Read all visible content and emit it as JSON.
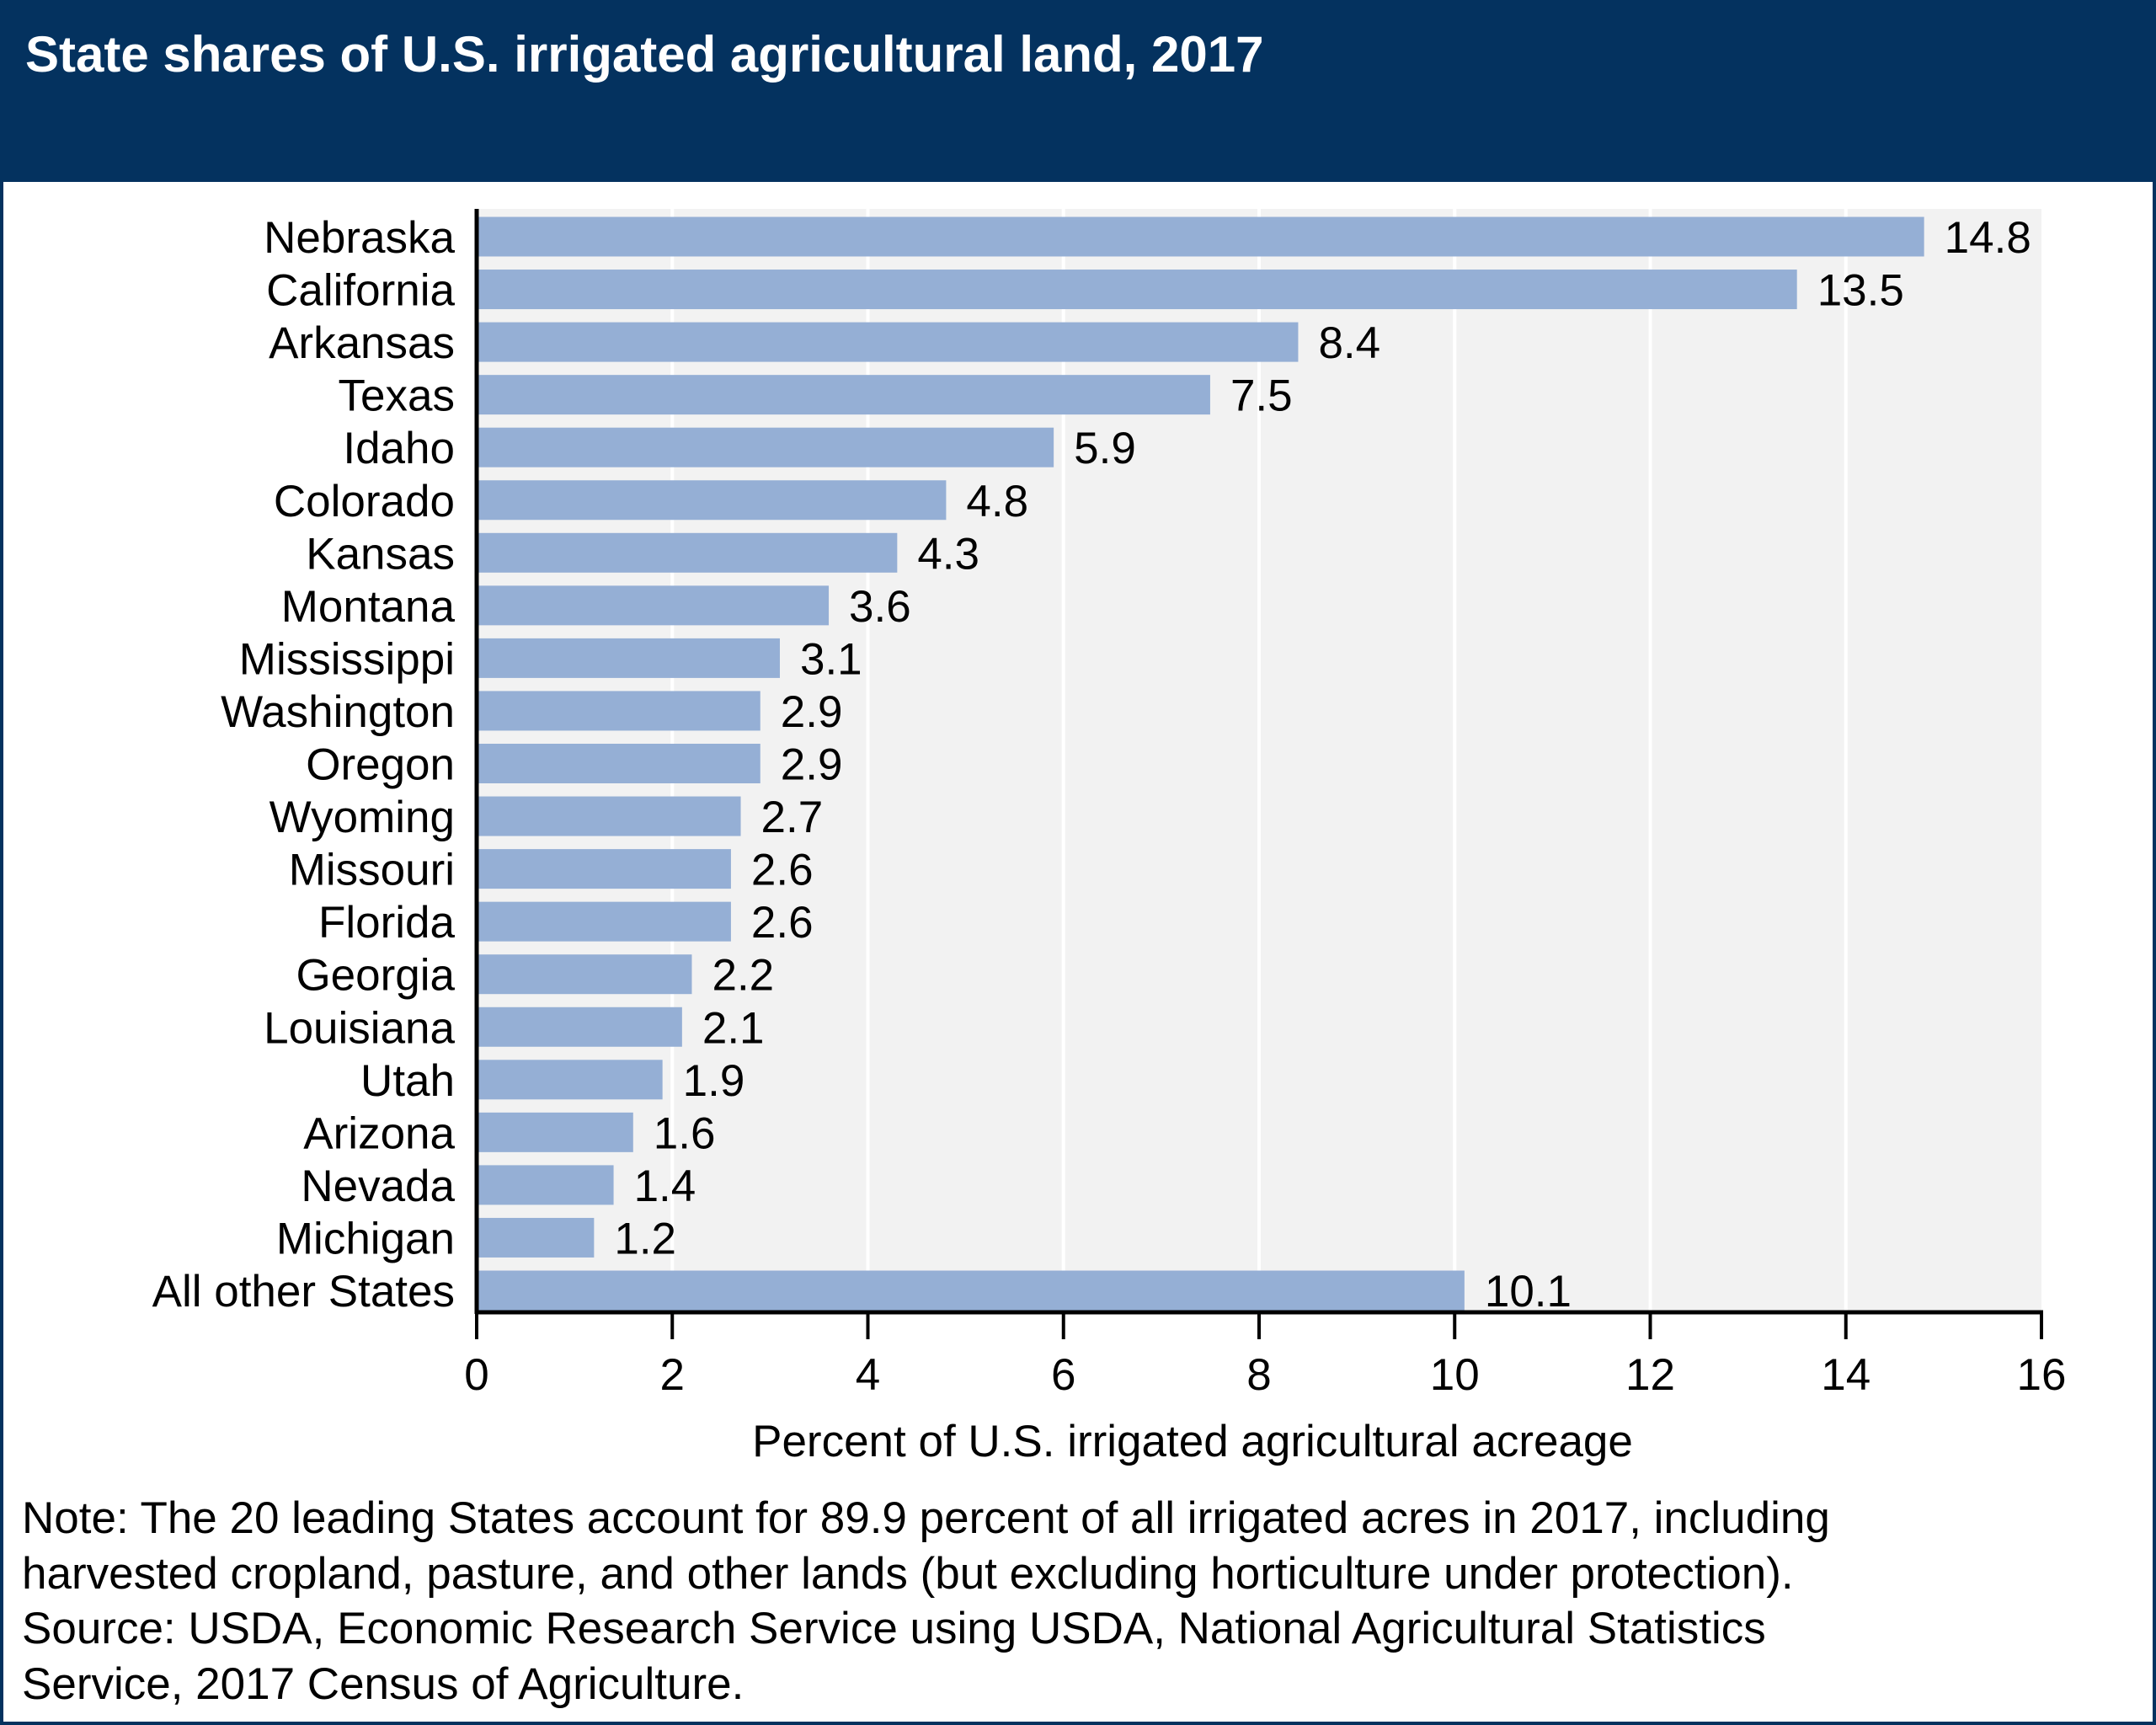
{
  "header": {
    "title": "State shares of U.S. irrigated agricultural land, 2017"
  },
  "colors": {
    "header": "#04325f",
    "bar": "#95afd5",
    "plot_background": "#f2f2f2",
    "gridline": "#ffffff"
  },
  "chart_data": {
    "type": "bar",
    "orientation": "horizontal",
    "title": "State shares of U.S. irrigated agricultural land, 2017",
    "categories": [
      "Nebraska",
      "California",
      "Arkansas",
      "Texas",
      "Idaho",
      "Colorado",
      "Kansas",
      "Montana",
      "Mississippi",
      "Washington",
      "Oregon",
      "Wyoming",
      "Missouri",
      "Florida",
      "Georgia",
      "Louisiana",
      "Utah",
      "Arizona",
      "Nevada",
      "Michigan",
      "All other States"
    ],
    "values": [
      14.8,
      13.5,
      8.4,
      7.5,
      5.9,
      4.8,
      4.3,
      3.6,
      3.1,
      2.9,
      2.9,
      2.7,
      2.6,
      2.6,
      2.2,
      2.1,
      1.9,
      1.6,
      1.4,
      1.2,
      10.1
    ],
    "data_labels": [
      "14.8",
      "13.5",
      "8.4",
      "7.5",
      "5.9",
      "4.8",
      "4.3",
      "3.6",
      "3.1",
      "2.9",
      "2.9",
      "2.7",
      "2.6",
      "2.6",
      "2.2",
      "2.1",
      "1.9",
      "1.6",
      "1.4",
      "1.2",
      "10.1"
    ],
    "xlabel": "Percent of U.S. irrigated agricultural acreage",
    "ylabel": "",
    "xlim": [
      0,
      16
    ],
    "xticks": [
      "0",
      "2",
      "4",
      "6",
      "8",
      "10",
      "12",
      "14",
      "16"
    ],
    "grid": "vertical"
  },
  "note": {
    "lines": [
      "Note: The 20 leading States account for 89.9 percent of all irrigated acres in 2017, including",
      "harvested cropland, pasture, and other lands (but excluding horticulture under protection).",
      "Source: USDA, Economic Research Service using USDA, National Agricultural Statistics",
      "Service, 2017 Census of Agriculture."
    ]
  }
}
